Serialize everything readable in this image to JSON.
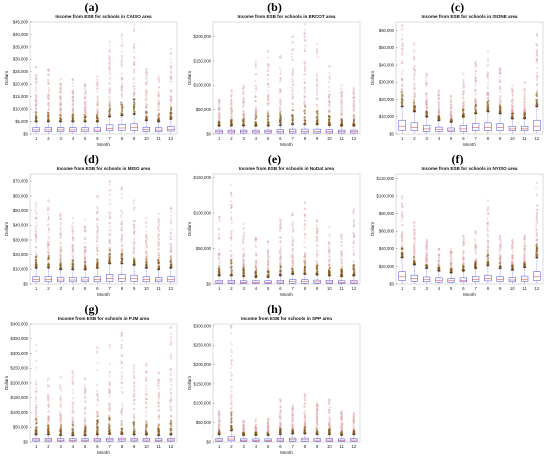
{
  "colors": {
    "box": "#4a4ae0",
    "median": "#d83a3a",
    "outlier": "#e0a8a8",
    "outlier_dense": "#8a5a20"
  },
  "chart_data": [
    {
      "label": "(a)",
      "type": "box",
      "title": "Income from ESB for schools in CAISO area",
      "xlabel": "Month",
      "ylabel": "Dollars",
      "categories": [
        "1",
        "2",
        "3",
        "4",
        "5",
        "6",
        "7",
        "8",
        "9",
        "10",
        "11",
        "12"
      ],
      "yticks": [
        "$0",
        "$5,000",
        "$10,000",
        "$15,000",
        "$20,000",
        "$25,000",
        "$30,000",
        "$35,000",
        "$40,000",
        "$45,000"
      ],
      "ylim": [
        0,
        45000
      ],
      "box_q1": [
        1000,
        1000,
        1000,
        1000,
        1000,
        1000,
        1300,
        1400,
        1500,
        1000,
        1000,
        1200
      ],
      "box_q3": [
        2600,
        2600,
        2600,
        2600,
        2600,
        2500,
        3700,
        3900,
        4100,
        2700,
        2500,
        3000
      ],
      "whisker_hi": [
        5000,
        5000,
        5000,
        5000,
        5000,
        5000,
        7000,
        7500,
        8000,
        5500,
        5000,
        6000
      ],
      "outlier_max": [
        27000,
        26000,
        22000,
        22000,
        20000,
        23000,
        37000,
        40000,
        44000,
        26000,
        23000,
        34000
      ]
    },
    {
      "label": "(b)",
      "type": "box",
      "title": "Income from ESB for schools in ERCOT area",
      "xlabel": "Month",
      "ylabel": "Dollars",
      "categories": [
        "1",
        "2",
        "3",
        "4",
        "5",
        "6",
        "7",
        "8",
        "9",
        "10",
        "11",
        "12"
      ],
      "yticks": [
        "$0",
        "$50,000",
        "$100,000",
        "$150,000",
        "$200,000"
      ],
      "ylim": [
        0,
        230000
      ],
      "box_q1": [
        2000,
        2000,
        2000,
        2000,
        2000,
        2000,
        2000,
        2000,
        2000,
        2000,
        2000,
        2000
      ],
      "box_q3": [
        8000,
        8000,
        8000,
        8000,
        8000,
        9000,
        10000,
        10000,
        10000,
        9000,
        8000,
        8000
      ],
      "whisker_hi": [
        17000,
        17000,
        17000,
        17000,
        17000,
        18000,
        20000,
        20000,
        20000,
        18000,
        17000,
        17000
      ],
      "outlier_max": [
        70000,
        90000,
        100000,
        150000,
        170000,
        160000,
        200000,
        225000,
        185000,
        140000,
        100000,
        95000
      ]
    },
    {
      "label": "(c)",
      "type": "box",
      "title": "Income from ESB for schools in ISONE area",
      "xlabel": "Month",
      "ylabel": "Dollars",
      "categories": [
        "1",
        "2",
        "3",
        "4",
        "5",
        "6",
        "7",
        "8",
        "9",
        "10",
        "11",
        "12"
      ],
      "yticks": [
        "$0",
        "$10,000",
        "$20,000",
        "$30,000",
        "$40,000",
        "$50,000",
        "$60,000"
      ],
      "ylim": [
        0,
        65000
      ],
      "box_q1": [
        2000,
        2000,
        1500,
        1500,
        1500,
        1500,
        2000,
        2000,
        2000,
        2000,
        2000,
        2000
      ],
      "box_q3": [
        8000,
        6500,
        5000,
        4000,
        3500,
        5000,
        6000,
        6500,
        6000,
        4500,
        4500,
        8000
      ],
      "whisker_hi": [
        16000,
        13000,
        10000,
        8000,
        7000,
        10000,
        12000,
        13000,
        12000,
        9000,
        9000,
        16000
      ],
      "outlier_max": [
        63000,
        53000,
        35000,
        25000,
        22000,
        35000,
        42000,
        48000,
        38000,
        28000,
        30000,
        58000
      ]
    },
    {
      "label": "(d)",
      "type": "box",
      "title": "Income from ESB for schools in MISO area",
      "xlabel": "Month",
      "ylabel": "Dollars",
      "categories": [
        "1",
        "2",
        "3",
        "4",
        "5",
        "6",
        "7",
        "8",
        "9",
        "10",
        "11",
        "12"
      ],
      "yticks": [
        "$0",
        "$10,000",
        "$20,000",
        "$30,000",
        "$40,000",
        "$50,000",
        "$60,000",
        "$70,000"
      ],
      "ylim": [
        0,
        75000
      ],
      "box_q1": [
        1500,
        1500,
        1500,
        1500,
        1500,
        1500,
        1800,
        1800,
        1800,
        1500,
        1500,
        1500
      ],
      "box_q3": [
        5000,
        5000,
        4500,
        4500,
        4500,
        5000,
        6500,
        6500,
        6000,
        5000,
        4500,
        5000
      ],
      "whisker_hi": [
        11000,
        11000,
        10000,
        10000,
        10000,
        11000,
        14000,
        14000,
        13000,
        11000,
        10000,
        11000
      ],
      "outlier_max": [
        55000,
        57000,
        48000,
        45000,
        44000,
        60000,
        70000,
        66000,
        57000,
        45000,
        48000,
        52000
      ]
    },
    {
      "label": "(e)",
      "type": "box",
      "title": "Income from ESB for schools in NoDat area",
      "xlabel": "Month",
      "ylabel": "Dollars",
      "categories": [
        "1",
        "2",
        "3",
        "4",
        "5",
        "6",
        "7",
        "8",
        "9",
        "10",
        "11",
        "12"
      ],
      "yticks": [
        "$0",
        "$50,000",
        "$100,000",
        "$150,000"
      ],
      "ylim": [
        0,
        155000
      ],
      "box_q1": [
        1000,
        1000,
        1000,
        1000,
        1000,
        1000,
        1000,
        1000,
        1000,
        1000,
        1000,
        1000
      ],
      "box_q3": [
        5000,
        5000,
        4500,
        4500,
        4500,
        5000,
        6000,
        6000,
        5500,
        5000,
        4500,
        5000
      ],
      "whisker_hi": [
        12000,
        12000,
        11000,
        10000,
        10000,
        12000,
        14000,
        14000,
        13000,
        12000,
        11000,
        12000
      ],
      "outlier_max": [
        95000,
        140000,
        85000,
        65000,
        60000,
        90000,
        100000,
        115000,
        90000,
        80000,
        70000,
        105000
      ]
    },
    {
      "label": "(f)",
      "type": "box",
      "title": "Income from ESB for schools in NYISO area",
      "xlabel": "Month",
      "ylabel": "Dollars",
      "categories": [
        "1",
        "2",
        "3",
        "4",
        "5",
        "6",
        "7",
        "8",
        "9",
        "10",
        "11",
        "12"
      ],
      "yticks": [
        "$0",
        "$20,000",
        "$40,000",
        "$60,000",
        "$80,000",
        "$100,000",
        "$120,000"
      ],
      "ylim": [
        0,
        125000
      ],
      "box_q1": [
        4000,
        3000,
        2500,
        2000,
        2000,
        2500,
        3000,
        3500,
        3000,
        2500,
        3000,
        4000
      ],
      "box_q3": [
        14000,
        10000,
        8000,
        7000,
        6000,
        7000,
        8500,
        10000,
        8500,
        7500,
        9000,
        14000
      ],
      "whisker_hi": [
        30000,
        22000,
        18000,
        15000,
        13000,
        15000,
        18000,
        21000,
        18000,
        16000,
        19000,
        30000
      ],
      "outlier_max": [
        100000,
        70000,
        50000,
        40000,
        40000,
        55000,
        60000,
        95000,
        55000,
        50000,
        55000,
        115000
      ]
    },
    {
      "label": "(g)",
      "type": "box",
      "title": "Income from ESB for schools in PJM area",
      "xlabel": "Month",
      "ylabel": "Dollars",
      "categories": [
        "1",
        "2",
        "3",
        "4",
        "5",
        "6",
        "7",
        "8",
        "9",
        "10",
        "11",
        "12"
      ],
      "yticks": [
        "$0",
        "$50,000",
        "$100,000",
        "$150,000",
        "$200,000",
        "$250,000",
        "$300,000",
        "$350,000",
        "$400,000"
      ],
      "ylim": [
        0,
        400000
      ],
      "box_q1": [
        3000,
        3000,
        3000,
        3000,
        3000,
        3000,
        3000,
        3000,
        3000,
        3000,
        3000,
        3000
      ],
      "box_q3": [
        12000,
        12000,
        11000,
        11000,
        11000,
        12000,
        13000,
        13000,
        12000,
        12000,
        11000,
        12000
      ],
      "whisker_hi": [
        25000,
        25000,
        23000,
        23000,
        23000,
        25000,
        27000,
        27000,
        25000,
        25000,
        23000,
        25000
      ],
      "outlier_max": [
        330000,
        215000,
        220000,
        240000,
        215000,
        320000,
        330000,
        370000,
        260000,
        265000,
        235000,
        390000
      ]
    },
    {
      "label": "(h)",
      "type": "box",
      "title": "Income from ESB for schools in SPP area",
      "xlabel": "Month",
      "ylabel": "Dollars",
      "categories": [
        "1",
        "2",
        "3",
        "4",
        "5",
        "6",
        "7",
        "8",
        "9",
        "10",
        "11",
        "12"
      ],
      "yticks": [
        "$0",
        "$50,000",
        "$100,000",
        "$150,000",
        "$200,000",
        "$250,000",
        "$300,000"
      ],
      "ylim": [
        0,
        305000
      ],
      "box_q1": [
        2000,
        3000,
        2000,
        2000,
        2000,
        2000,
        2000,
        2000,
        2000,
        2000,
        2000,
        2000
      ],
      "box_q3": [
        9000,
        14000,
        8000,
        8000,
        8000,
        9000,
        10000,
        10000,
        9000,
        9000,
        8000,
        9000
      ],
      "whisker_hi": [
        20000,
        30000,
        18000,
        18000,
        18000,
        20000,
        22000,
        22000,
        20000,
        20000,
        18000,
        20000
      ],
      "outlier_max": [
        80000,
        300000,
        55000,
        60000,
        60000,
        110000,
        95000,
        125000,
        100000,
        110000,
        80000,
        75000
      ]
    }
  ]
}
